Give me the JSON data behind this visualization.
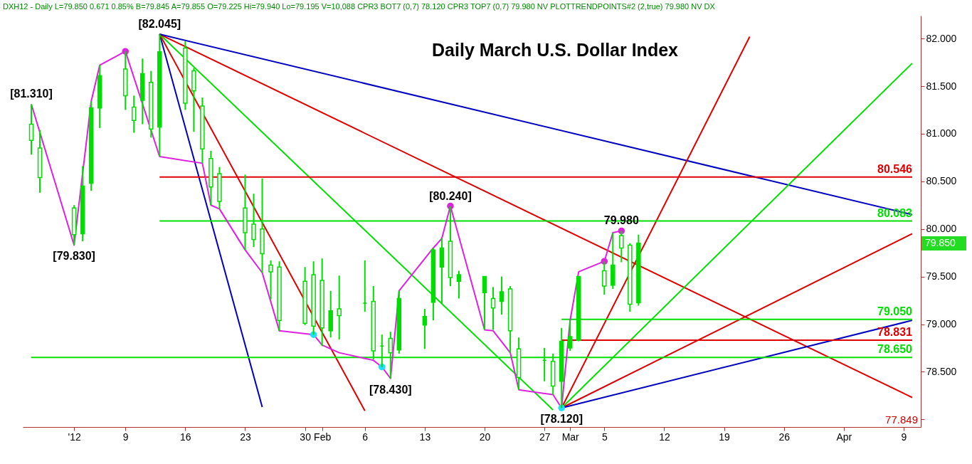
{
  "chart_data": {
    "type": "candlestick",
    "title": "Daily March U.S. Dollar Index",
    "annotations": [
      "DXH12 - Daily L=79.850 0.671 0.85% B=79.845 A=79.855 O=79.225 Hi=79.940 Lo=79.195 V=10,088 CPR3 BOT7 (0,7) 78.120 CPR3 TOP7 (0,7) 79.980 NV PLOTTRENDPOINTS#2 (2,true) 79.980 NV DX",
      "79.850",
      "77.849"
    ],
    "xlim": [
      "2011-12-28",
      "2012-04-11"
    ],
    "xticks": [
      {
        "value": "2012-01-03",
        "label": "'12"
      },
      {
        "value": "2012-01-09",
        "label": "9"
      },
      {
        "value": "2012-01-16",
        "label": "16"
      },
      {
        "value": "2012-01-23",
        "label": "23"
      },
      {
        "value": "2012-01-30",
        "label": "30"
      },
      {
        "value": "2012-02-01",
        "label": "Feb"
      },
      {
        "value": "2012-02-06",
        "label": "6"
      },
      {
        "value": "2012-02-13",
        "label": "13"
      },
      {
        "value": "2012-02-20",
        "label": "20"
      },
      {
        "value": "2012-02-27",
        "label": "27"
      },
      {
        "value": "2012-03-01",
        "label": "Mar"
      },
      {
        "value": "2012-03-05",
        "label": "5"
      },
      {
        "value": "2012-03-12",
        "label": "12"
      },
      {
        "value": "2012-03-19",
        "label": "19"
      },
      {
        "value": "2012-03-26",
        "label": "26"
      },
      {
        "value": "2012-04-02",
        "label": "Apr"
      },
      {
        "value": "2012-04-09",
        "label": "9"
      }
    ],
    "ylim": [
      77.92,
      82.24
    ],
    "yticks": [
      {
        "value": 78,
        "label": null
      },
      {
        "value": 78.5,
        "label": "78.500"
      },
      {
        "value": 79,
        "label": "79.000"
      },
      {
        "value": 79.5,
        "label": "79.500"
      },
      {
        "value": 80,
        "label": "80.000"
      },
      {
        "value": 80.5,
        "label": "80.500"
      },
      {
        "value": 81,
        "label": "81.000"
      },
      {
        "value": 81.5,
        "label": "81.500"
      },
      {
        "value": 82,
        "label": "82.000"
      }
    ],
    "grid": false,
    "series": [
      {
        "color": "#00dd00",
        "x": [
          "2011-12-29",
          "2011-12-30",
          "2012-01-03",
          "2012-01-04",
          "2012-01-05",
          "2012-01-06",
          "2012-01-09",
          "2012-01-10",
          "2012-01-11",
          "2012-01-12",
          "2012-01-13",
          "2012-01-16",
          "2012-01-17",
          "2012-01-18",
          "2012-01-19",
          "2012-01-20",
          "2012-01-23",
          "2012-01-24",
          "2012-01-25",
          "2012-01-26",
          "2012-01-27",
          "2012-01-30",
          "2012-01-31",
          "2012-02-01",
          "2012-02-02",
          "2012-02-03",
          "2012-02-06",
          "2012-02-07",
          "2012-02-08",
          "2012-02-09",
          "2012-02-10",
          "2012-02-13",
          "2012-02-14",
          "2012-02-15",
          "2012-02-16",
          "2012-02-17",
          "2012-02-20",
          "2012-02-21",
          "2012-02-22",
          "2012-02-23",
          "2012-02-24",
          "2012-02-27",
          "2012-02-28",
          "2012-02-29",
          "2012-03-01",
          "2012-03-02",
          "2012-03-05",
          "2012-03-06",
          "2012-03-07",
          "2012-03-08",
          "2012-03-09"
        ],
        "ohlc": [
          [
            81.1,
            81.31,
            80.78,
            80.93
          ],
          [
            80.85,
            81.04,
            80.38,
            80.54
          ],
          [
            80.22,
            80.25,
            79.83,
            79.94
          ],
          [
            79.95,
            80.66,
            79.87,
            80.45
          ],
          [
            80.48,
            81.34,
            80.4,
            81.27
          ],
          [
            81.27,
            81.72,
            81.06,
            81.61
          ],
          [
            81.68,
            81.865,
            81.25,
            81.4
          ],
          [
            81.28,
            81.4,
            81.01,
            81.14
          ],
          [
            81.35,
            81.79,
            81.1,
            81.63
          ],
          [
            81.54,
            81.66,
            80.96,
            81.05
          ],
          [
            81.07,
            82.045,
            80.76,
            81.86
          ],
          [
            81.9,
            81.97,
            81.25,
            81.32
          ],
          [
            81.66,
            81.69,
            81.02,
            81.45
          ],
          [
            81.29,
            81.38,
            80.69,
            80.84
          ],
          [
            80.74,
            80.82,
            80.25,
            80.44
          ],
          [
            80.58,
            80.65,
            80.21,
            80.29
          ],
          [
            80.22,
            80.57,
            79.78,
            79.96
          ],
          [
            80.05,
            80.37,
            79.81,
            79.89
          ],
          [
            80.0,
            80.53,
            79.54,
            79.74
          ],
          [
            79.62,
            79.67,
            79.26,
            79.55
          ],
          [
            79.6,
            79.66,
            78.93,
            79.04
          ],
          [
            79.45,
            79.6,
            78.99,
            79.01
          ],
          [
            79.52,
            79.66,
            78.89,
            78.98
          ],
          [
            79.46,
            79.69,
            78.77,
            78.96
          ],
          [
            78.93,
            79.35,
            78.86,
            79.14
          ],
          [
            79.16,
            79.51,
            78.84,
            79.09
          ],
          [
            79.22,
            79.67,
            79.13,
            79.22
          ],
          [
            79.24,
            79.4,
            78.63,
            78.72
          ],
          [
            78.77,
            78.89,
            78.55,
            78.77
          ],
          [
            78.85,
            78.92,
            78.43,
            78.7
          ],
          [
            78.73,
            79.35,
            78.69,
            79.27
          ],
          [
            78.99,
            79.16,
            78.74,
            79.08
          ],
          [
            79.23,
            79.8,
            79.04,
            79.78
          ],
          [
            79.6,
            79.9,
            79.22,
            79.8
          ],
          [
            79.87,
            80.24,
            79.4,
            79.49
          ],
          [
            79.45,
            79.56,
            79.27,
            79.52
          ],
          [
            79.33,
            79.5,
            78.94,
            79.5
          ],
          [
            79.27,
            79.39,
            78.94,
            79.17
          ],
          [
            79.24,
            79.5,
            79.1,
            79.34
          ],
          [
            79.37,
            79.4,
            78.7,
            78.93
          ],
          [
            78.74,
            78.86,
            78.31,
            78.44
          ],
          [
            78.62,
            78.75,
            78.4,
            78.62
          ],
          [
            78.61,
            78.69,
            78.26,
            78.35
          ],
          [
            78.4,
            78.96,
            78.12,
            78.82
          ],
          [
            78.75,
            79.04,
            78.72,
            78.87
          ],
          [
            78.83,
            79.5,
            78.82,
            79.5
          ],
          [
            79.56,
            79.66,
            79.31,
            79.4
          ],
          [
            79.41,
            79.96,
            79.37,
            79.62
          ],
          [
            79.93,
            79.98,
            79.65,
            79.8
          ],
          [
            79.83,
            79.85,
            79.13,
            79.21
          ],
          [
            79.225,
            79.94,
            79.195,
            79.85
          ]
        ]
      },
      {
        "type": "line",
        "color": "#0000c0",
        "x": [
          "2012-01-13",
          "2012-01-25"
        ],
        "values": [
          82.045,
          78.13
        ],
        "value_labels": [
          "[82.045]",
          null
        ]
      },
      {
        "type": "line",
        "color": "#e00000",
        "x": [
          "2012-01-13",
          "2012-02-06"
        ],
        "values": [
          82.045,
          78.09
        ]
      },
      {
        "type": "line",
        "color": "#00e000",
        "x": [
          "2012-01-13",
          "2012-02-28"
        ],
        "values": [
          82.045,
          78.1
        ]
      },
      {
        "type": "line",
        "color": "#e00000",
        "x": [
          "2012-01-13",
          "2012-04-10"
        ],
        "values": [
          82.045,
          78.23
        ]
      },
      {
        "type": "line",
        "color": "#0000c0",
        "x": [
          "2012-01-13",
          "2012-04-10"
        ],
        "values": [
          82.045,
          80.15
        ]
      },
      {
        "type": "line",
        "color": "#e00000",
        "x": [
          "2012-02-29",
          "2012-03-22"
        ],
        "values": [
          78.12,
          82.02
        ]
      },
      {
        "type": "line",
        "color": "#00e000",
        "x": [
          "2012-02-29",
          "2012-04-10"
        ],
        "values": [
          78.12,
          81.74
        ]
      },
      {
        "type": "line",
        "color": "#e00000",
        "x": [
          "2012-02-29",
          "2012-04-10"
        ],
        "values": [
          78.12,
          79.95
        ]
      },
      {
        "type": "line",
        "color": "#0000c0",
        "x": [
          "2012-02-29",
          "2012-04-10"
        ],
        "values": [
          78.12,
          79.04
        ]
      },
      {
        "type": "line",
        "name": "80.546",
        "color": "#e00000",
        "x": [
          "2012-01-13",
          "2012-04-10"
        ],
        "values": [
          80.546,
          80.546
        ]
      },
      {
        "type": "line",
        "name": "80.083",
        "color": "#00e000",
        "x": [
          "2012-01-13",
          "2012-04-10"
        ],
        "values": [
          80.083,
          80.083
        ]
      },
      {
        "type": "line",
        "name": "79.050",
        "color": "#00e000",
        "x": [
          "2012-02-29",
          "2012-04-10"
        ],
        "values": [
          79.05,
          79.05
        ]
      },
      {
        "type": "line",
        "name": "78.831",
        "color": "#e00000",
        "x": [
          "2012-02-29",
          "2012-04-10"
        ],
        "values": [
          78.831,
          78.831
        ]
      },
      {
        "type": "line",
        "name": "78.650",
        "color": "#00e000",
        "x": [
          "2011-12-29",
          "2012-04-10"
        ],
        "values": [
          78.65,
          78.65
        ]
      },
      {
        "type": "line",
        "color": "#e020e0",
        "x": [
          "2011-12-29",
          "2012-01-03",
          "2012-01-05",
          "2012-01-06",
          "2012-01-09",
          "2012-01-13",
          "2012-01-18",
          "2012-01-19",
          "2012-01-20",
          "2012-01-23",
          "2012-01-25",
          "2012-01-27",
          "2012-01-31",
          "2012-02-01",
          "2012-02-03",
          "2012-02-07",
          "2012-02-08",
          "2012-02-09",
          "2012-02-10",
          "2012-02-14",
          "2012-02-15",
          "2012-02-16",
          "2012-02-20",
          "2012-02-21",
          "2012-02-23",
          "2012-02-24",
          "2012-02-28",
          "2012-02-29",
          "2012-03-01",
          "2012-03-02",
          "2012-03-05",
          "2012-03-06",
          "2012-03-07"
        ],
        "values": [
          81.31,
          79.83,
          81.34,
          81.72,
          81.865,
          80.76,
          80.69,
          80.25,
          80.21,
          79.78,
          79.54,
          78.93,
          78.89,
          78.78,
          78.7,
          78.62,
          78.55,
          78.43,
          79.35,
          79.8,
          79.9,
          80.24,
          78.94,
          78.93,
          78.7,
          78.31,
          78.26,
          78.12,
          79.04,
          79.55,
          79.66,
          79.96,
          79.98
        ],
        "value_labels": [
          "[81.310]",
          "[79.830]",
          null,
          null,
          null,
          null,
          null,
          null,
          null,
          null,
          null,
          null,
          null,
          null,
          null,
          null,
          null,
          "[78.430]",
          null,
          null,
          null,
          "[80.240]",
          null,
          null,
          null,
          null,
          null,
          "[78.120]",
          null,
          null,
          null,
          null,
          "79.980"
        ]
      },
      {
        "type": "scatter",
        "color": "#e020e0",
        "x": [
          "2012-01-09",
          "2012-02-16",
          "2012-03-05",
          "2012-03-07"
        ],
        "values": [
          81.865,
          80.24,
          79.66,
          79.98
        ]
      },
      {
        "type": "scatter",
        "color": "#20e0ff",
        "x": [
          "2012-01-31",
          "2012-02-08",
          "2012-02-29"
        ],
        "values": [
          78.89,
          78.55,
          78.12
        ]
      }
    ]
  }
}
